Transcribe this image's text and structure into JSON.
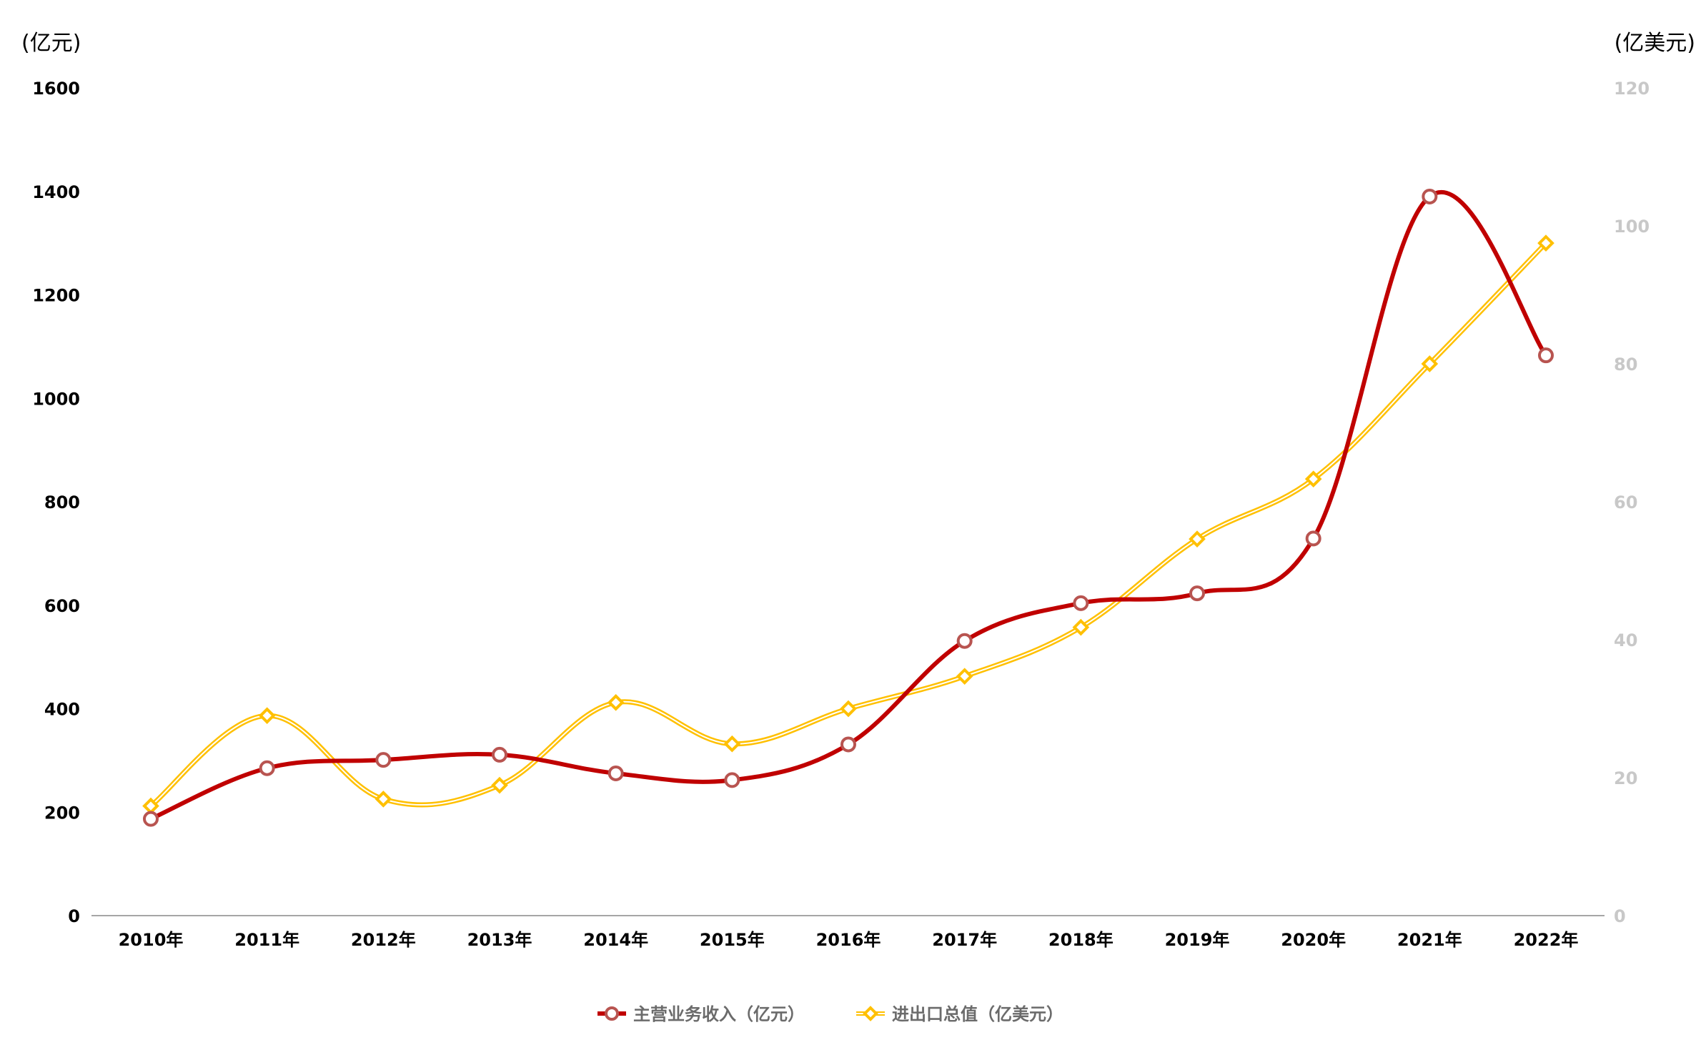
{
  "chart_data": {
    "type": "line",
    "categories": [
      "2010年",
      "2011年",
      "2012年",
      "2013年",
      "2014年",
      "2015年",
      "2016年",
      "2017年",
      "2018年",
      "2019年",
      "2020年",
      "2021年",
      "2022年"
    ],
    "series": [
      {
        "name": "主营业务收入（亿元）",
        "axis": "left",
        "color": "#c00000",
        "marker": "circle",
        "values": [
          187,
          285,
          301,
          311,
          275,
          262,
          331,
          531,
          604,
          623,
          729,
          1390,
          1083
        ]
      },
      {
        "name": "进出口总值（亿美元）",
        "axis": "right",
        "color": "#ffc000",
        "marker": "diamond",
        "values": [
          15.9,
          29.0,
          16.9,
          18.9,
          30.9,
          24.9,
          30.0,
          34.7,
          41.8,
          54.6,
          63.3,
          80.0,
          97.5
        ]
      }
    ],
    "y_left": {
      "unit": "(亿元)",
      "ylim": [
        0,
        1600
      ],
      "ticks": [
        "0",
        "200",
        "400",
        "600",
        "800",
        "1000",
        "1200",
        "1400",
        "1600"
      ]
    },
    "y_right": {
      "unit": "(亿美元)",
      "ylim": [
        0,
        120
      ],
      "ticks": [
        "0",
        "20",
        "40",
        "60",
        "80",
        "100",
        "120"
      ]
    },
    "grid": false,
    "legend_position": "bottom"
  }
}
